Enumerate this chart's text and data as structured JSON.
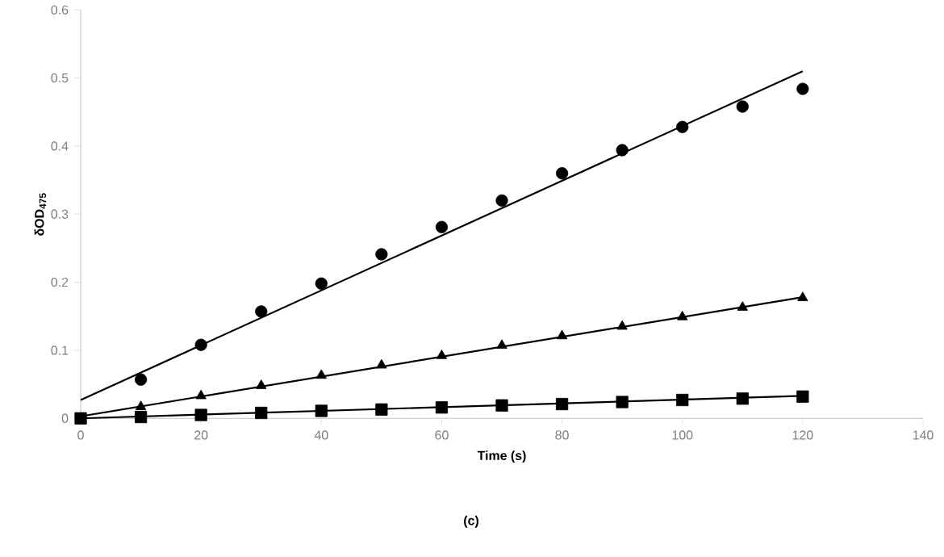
{
  "chart_data": {
    "type": "scatter",
    "xlabel": "Time (s)",
    "ylabel": "δOD$_{475}$",
    "annotations": [
      "(c)"
    ],
    "xlim": [
      0,
      140
    ],
    "xticks": [
      0,
      20,
      40,
      60,
      80,
      100,
      120,
      140
    ],
    "ylim": [
      0,
      0.6
    ],
    "yticks": [
      0,
      0.1,
      0.2,
      0.3,
      0.4,
      0.5,
      0.6
    ],
    "grid": false,
    "series": [
      {
        "marker": "circle",
        "color": "#000000",
        "x": [
          10,
          20,
          30,
          40,
          50,
          60,
          70,
          80,
          90,
          100,
          110,
          120
        ],
        "values": [
          0.057,
          0.108,
          0.157,
          0.198,
          0.241,
          0.281,
          0.32,
          0.36,
          0.394,
          0.428,
          0.458,
          0.484
        ]
      },
      {
        "marker": "triangle",
        "color": "#000000",
        "x": [
          10,
          20,
          30,
          40,
          50,
          60,
          70,
          80,
          90,
          100,
          110,
          120
        ],
        "values": [
          0.017,
          0.033,
          0.048,
          0.063,
          0.078,
          0.092,
          0.107,
          0.121,
          0.135,
          0.149,
          0.163,
          0.177
        ]
      },
      {
        "marker": "square",
        "color": "#000000",
        "x": [
          0,
          10,
          20,
          30,
          40,
          50,
          60,
          70,
          80,
          90,
          100,
          110,
          120
        ],
        "values": [
          0,
          0.002,
          0.005,
          0.008,
          0.011,
          0.013,
          0.016,
          0.019,
          0.021,
          0.024,
          0.027,
          0.029,
          0.032
        ]
      },
      {
        "type": "line",
        "marker": "none",
        "line_style": "solid",
        "color": "#000000",
        "x": [
          0,
          120
        ],
        "values": [
          0.027,
          0.51
        ]
      },
      {
        "type": "line",
        "marker": "none",
        "line_style": "solid",
        "color": "#000000",
        "x": [
          0,
          120
        ],
        "values": [
          0.003,
          0.178
        ]
      },
      {
        "type": "line",
        "marker": "none",
        "line_style": "solid",
        "color": "#000000",
        "x": [
          0,
          120
        ],
        "values": [
          0,
          0.033
        ]
      }
    ]
  }
}
